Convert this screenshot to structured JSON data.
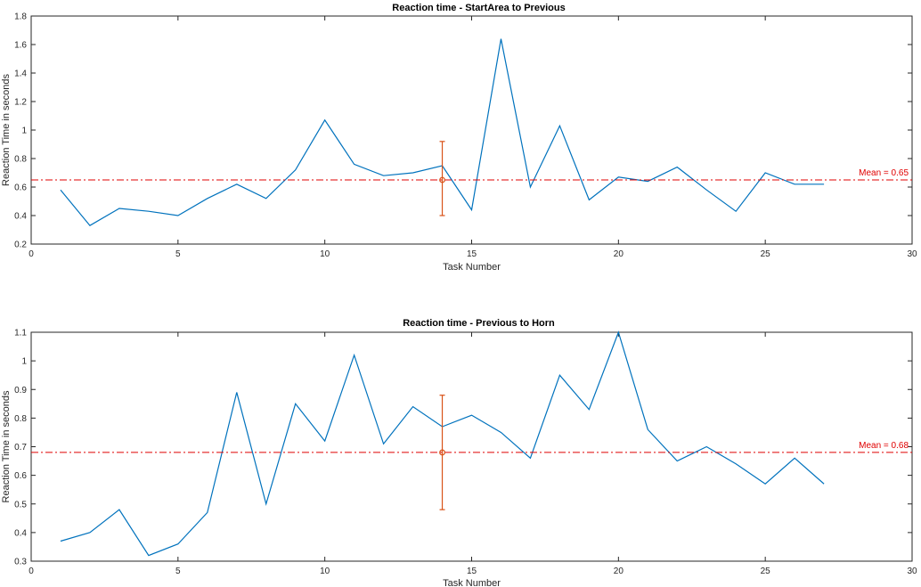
{
  "chart_data": [
    {
      "type": "line",
      "title": "Reaction time - StartArea to Previous",
      "xlabel": "Task Number",
      "ylabel": "Reaction Time in seconds",
      "xlim": [
        0,
        30
      ],
      "ylim": [
        0.2,
        1.8
      ],
      "xticks": [
        0,
        5,
        10,
        15,
        20,
        25,
        30
      ],
      "yticks": [
        0.2,
        0.4,
        0.6,
        0.8,
        1,
        1.2,
        1.4,
        1.6,
        1.8
      ],
      "grid": false,
      "series": [
        {
          "color": "#0072BD",
          "x": [
            1,
            2,
            3,
            4,
            5,
            6,
            7,
            8,
            9,
            10,
            11,
            12,
            13,
            14,
            15,
            16,
            17,
            18,
            19,
            20,
            21,
            22,
            23,
            24,
            25,
            26,
            27
          ],
          "y": [
            0.58,
            0.33,
            0.45,
            0.43,
            0.4,
            0.52,
            0.62,
            0.52,
            0.72,
            1.07,
            0.76,
            0.68,
            0.7,
            0.75,
            0.44,
            1.64,
            0.6,
            1.03,
            0.51,
            0.67,
            0.64,
            0.74,
            0.58,
            0.43,
            0.7,
            0.62,
            0.62
          ]
        }
      ],
      "mean": {
        "value": 0.65,
        "label": "Mean = 0.65",
        "color": "#E00000"
      },
      "errorbar": {
        "x": 14,
        "y": 0.65,
        "low": 0.4,
        "high": 0.92,
        "color": "#D95319"
      }
    },
    {
      "type": "line",
      "title": "Reaction time - Previous to Horn",
      "xlabel": "Task Number",
      "ylabel": "Reaction Time in seconds",
      "xlim": [
        0,
        30
      ],
      "ylim": [
        0.3,
        1.1
      ],
      "xticks": [
        0,
        5,
        10,
        15,
        20,
        25,
        30
      ],
      "yticks": [
        0.3,
        0.4,
        0.5,
        0.6,
        0.7,
        0.8,
        0.9,
        1,
        1.1
      ],
      "grid": false,
      "series": [
        {
          "color": "#0072BD",
          "x": [
            1,
            2,
            3,
            4,
            5,
            6,
            7,
            8,
            9,
            10,
            11,
            12,
            13,
            14,
            15,
            16,
            17,
            18,
            19,
            20,
            21,
            22,
            23,
            24,
            25,
            26,
            27
          ],
          "y": [
            0.37,
            0.4,
            0.48,
            0.32,
            0.36,
            0.47,
            0.89,
            0.5,
            0.85,
            0.72,
            1.02,
            0.71,
            0.84,
            0.77,
            0.81,
            0.75,
            0.66,
            0.95,
            0.83,
            1.1,
            0.76,
            0.65,
            0.7,
            0.64,
            0.57,
            0.66,
            0.57
          ]
        }
      ],
      "mean": {
        "value": 0.68,
        "label": "Mean = 0.68",
        "color": "#E00000"
      },
      "errorbar": {
        "x": 14,
        "y": 0.68,
        "low": 0.48,
        "high": 0.88,
        "color": "#D95319"
      }
    }
  ]
}
